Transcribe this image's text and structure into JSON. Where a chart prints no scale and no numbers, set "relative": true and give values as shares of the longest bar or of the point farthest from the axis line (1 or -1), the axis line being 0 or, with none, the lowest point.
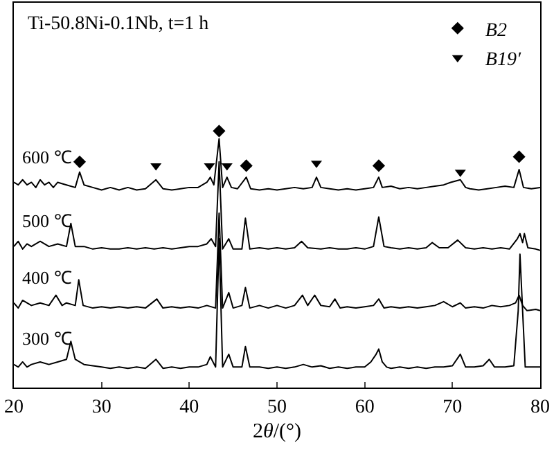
{
  "chart_data": {
    "type": "line",
    "title": "Ti-50.8Ni-0.1Nb, t=1 h",
    "xlabel": "2θ/(°)",
    "xlim": [
      20,
      80
    ],
    "xticks": [
      20,
      30,
      40,
      50,
      60,
      70,
      80
    ],
    "relative": true,
    "legend": "top right",
    "marker": "none",
    "line_style": "solid",
    "series": [
      {
        "name": "600 ℃",
        "color": "#000000",
        "x": [
          20,
          20.5,
          21,
          21.5,
          22,
          22.5,
          23,
          23.5,
          24,
          24.5,
          25,
          26,
          27,
          27.5,
          28,
          29,
          30,
          31,
          32,
          33,
          34,
          35,
          36.2,
          37,
          38,
          39,
          40,
          41,
          42,
          42.4,
          42.8,
          43.4,
          43.8,
          44.3,
          44.8,
          45.5,
          46.5,
          47,
          48,
          49,
          50,
          51,
          52,
          53,
          54,
          54.5,
          55,
          56,
          57,
          58,
          59,
          60,
          61,
          61.6,
          62,
          63,
          64,
          65,
          66,
          67,
          68,
          69,
          69.8,
          70.9,
          71.5,
          72,
          73,
          74,
          75,
          76,
          77,
          77.6,
          78.1,
          79,
          80
        ],
        "values": [
          0.8,
          0.79,
          0.81,
          0.79,
          0.8,
          0.78,
          0.81,
          0.79,
          0.8,
          0.78,
          0.8,
          0.79,
          0.78,
          0.84,
          0.79,
          0.78,
          0.77,
          0.78,
          0.77,
          0.78,
          0.77,
          0.775,
          0.81,
          0.775,
          0.77,
          0.775,
          0.78,
          0.78,
          0.8,
          0.82,
          0.79,
          0.97,
          0.78,
          0.82,
          0.78,
          0.775,
          0.82,
          0.775,
          0.77,
          0.775,
          0.77,
          0.775,
          0.78,
          0.775,
          0.78,
          0.82,
          0.78,
          0.775,
          0.77,
          0.775,
          0.77,
          0.775,
          0.78,
          0.82,
          0.78,
          0.785,
          0.775,
          0.78,
          0.775,
          0.78,
          0.785,
          0.79,
          0.8,
          0.81,
          0.78,
          0.775,
          0.77,
          0.775,
          0.78,
          0.785,
          0.78,
          0.85,
          0.78,
          0.775,
          0.78
        ]
      },
      {
        "name": "500 ℃",
        "color": "#000000",
        "x": [
          20,
          20.5,
          21,
          21.5,
          22,
          23,
          24,
          25,
          26,
          26.5,
          27,
          28,
          29,
          30,
          31,
          32,
          33,
          34,
          35,
          36,
          37,
          38,
          39,
          40,
          41,
          42,
          42.5,
          43,
          43.4,
          43.8,
          44.5,
          45,
          46,
          46.4,
          46.9,
          48,
          49,
          50,
          51,
          52,
          52.8,
          53.5,
          55,
          56,
          57,
          58,
          59,
          60,
          61,
          61.6,
          62.2,
          63,
          64,
          65,
          66,
          67,
          67.7,
          68.5,
          69.5,
          70.6,
          71.5,
          72.5,
          73.5,
          74.5,
          75.5,
          76.5,
          77.4,
          77.7,
          78,
          78.2,
          78.6,
          79.5,
          80
        ],
        "values": [
          0.55,
          0.57,
          0.54,
          0.56,
          0.55,
          0.57,
          0.55,
          0.56,
          0.55,
          0.64,
          0.55,
          0.55,
          0.54,
          0.545,
          0.54,
          0.54,
          0.545,
          0.54,
          0.545,
          0.54,
          0.545,
          0.54,
          0.545,
          0.55,
          0.55,
          0.56,
          0.58,
          0.55,
          0.88,
          0.54,
          0.58,
          0.54,
          0.54,
          0.66,
          0.54,
          0.545,
          0.54,
          0.545,
          0.54,
          0.545,
          0.57,
          0.545,
          0.54,
          0.545,
          0.54,
          0.54,
          0.545,
          0.54,
          0.55,
          0.665,
          0.55,
          0.545,
          0.54,
          0.545,
          0.54,
          0.545,
          0.565,
          0.545,
          0.545,
          0.575,
          0.545,
          0.54,
          0.545,
          0.54,
          0.545,
          0.54,
          0.58,
          0.6,
          0.565,
          0.6,
          0.545,
          0.54,
          0.535
        ]
      },
      {
        "name": "400 ℃",
        "color": "#000000",
        "x": [
          20,
          20.5,
          21,
          22,
          23,
          24,
          24.8,
          25.5,
          26,
          27,
          27.4,
          27.9,
          29,
          30,
          31,
          32,
          33,
          34,
          35,
          36.3,
          37,
          38,
          39,
          40,
          41,
          42,
          43,
          43.4,
          43.8,
          44.5,
          45,
          46,
          46.4,
          46.9,
          48,
          49,
          50,
          51,
          52,
          52.9,
          53.5,
          54.3,
          55,
          56,
          56.6,
          57.2,
          58,
          59,
          60,
          61,
          61.6,
          62.2,
          63,
          64,
          65,
          66,
          67,
          68,
          69,
          70,
          70.9,
          71.5,
          72.5,
          73.5,
          74.5,
          75.5,
          76.5,
          77.2,
          77.6,
          78,
          78.5,
          79.5,
          80
        ],
        "values": [
          0.33,
          0.31,
          0.34,
          0.32,
          0.33,
          0.32,
          0.36,
          0.32,
          0.33,
          0.32,
          0.42,
          0.32,
          0.31,
          0.315,
          0.31,
          0.315,
          0.31,
          0.315,
          0.31,
          0.345,
          0.31,
          0.315,
          0.31,
          0.315,
          0.31,
          0.32,
          0.31,
          0.68,
          0.31,
          0.37,
          0.31,
          0.32,
          0.39,
          0.31,
          0.32,
          0.31,
          0.32,
          0.31,
          0.32,
          0.36,
          0.32,
          0.36,
          0.32,
          0.315,
          0.345,
          0.31,
          0.315,
          0.31,
          0.315,
          0.32,
          0.345,
          0.31,
          0.315,
          0.31,
          0.315,
          0.31,
          0.315,
          0.32,
          0.335,
          0.315,
          0.33,
          0.31,
          0.315,
          0.31,
          0.32,
          0.315,
          0.32,
          0.33,
          0.36,
          0.32,
          0.3,
          0.305,
          0.3
        ]
      },
      {
        "name": "300 ℃",
        "color": "#000000",
        "x": [
          20,
          20.5,
          21,
          21.5,
          22,
          23,
          24,
          25,
          26,
          26.5,
          27,
          27.5,
          28,
          29,
          30,
          31,
          32,
          33,
          34,
          35,
          36.2,
          37,
          38,
          39,
          40,
          41,
          42,
          42.4,
          43,
          43.4,
          43.8,
          44.5,
          45,
          46,
          46.4,
          46.9,
          48,
          49,
          50,
          51,
          52,
          53,
          54,
          55,
          56,
          57,
          58,
          59,
          60,
          60.7,
          61.3,
          61.6,
          62,
          62.5,
          63,
          64,
          65,
          66,
          67,
          68,
          69,
          70,
          70.9,
          71.5,
          72.5,
          73.5,
          74.2,
          74.8,
          76,
          77,
          77.5,
          77.7,
          78,
          78.3,
          79,
          80
        ],
        "values": [
          0.09,
          0.08,
          0.1,
          0.08,
          0.09,
          0.1,
          0.09,
          0.1,
          0.11,
          0.18,
          0.11,
          0.1,
          0.09,
          0.085,
          0.08,
          0.075,
          0.08,
          0.075,
          0.08,
          0.075,
          0.11,
          0.075,
          0.08,
          0.075,
          0.08,
          0.08,
          0.09,
          0.12,
          0.08,
          0.58,
          0.08,
          0.13,
          0.08,
          0.08,
          0.16,
          0.08,
          0.08,
          0.075,
          0.08,
          0.075,
          0.08,
          0.09,
          0.08,
          0.085,
          0.075,
          0.08,
          0.075,
          0.08,
          0.08,
          0.1,
          0.13,
          0.15,
          0.1,
          0.08,
          0.075,
          0.08,
          0.075,
          0.08,
          0.075,
          0.08,
          0.08,
          0.085,
          0.13,
          0.08,
          0.08,
          0.085,
          0.11,
          0.08,
          0.08,
          0.085,
          0.3,
          0.52,
          0.3,
          0.08,
          0.08,
          0.08
        ]
      },
      {
        "name": "B2",
        "type": "scatter",
        "marker": "diamond",
        "color": "#000000",
        "x": [
          27.5,
          43.4,
          46.5,
          61.6,
          77.6
        ],
        "values": [
          0.88,
          1.0,
          0.865,
          0.865,
          0.9
        ]
      },
      {
        "name": "B19′",
        "type": "scatter",
        "marker": "triangle",
        "color": "#000000",
        "x": [
          36.2,
          42.3,
          44.3,
          54.5,
          70.9
        ],
        "values": [
          0.865,
          0.865,
          0.865,
          0.875,
          0.84
        ]
      }
    ]
  }
}
